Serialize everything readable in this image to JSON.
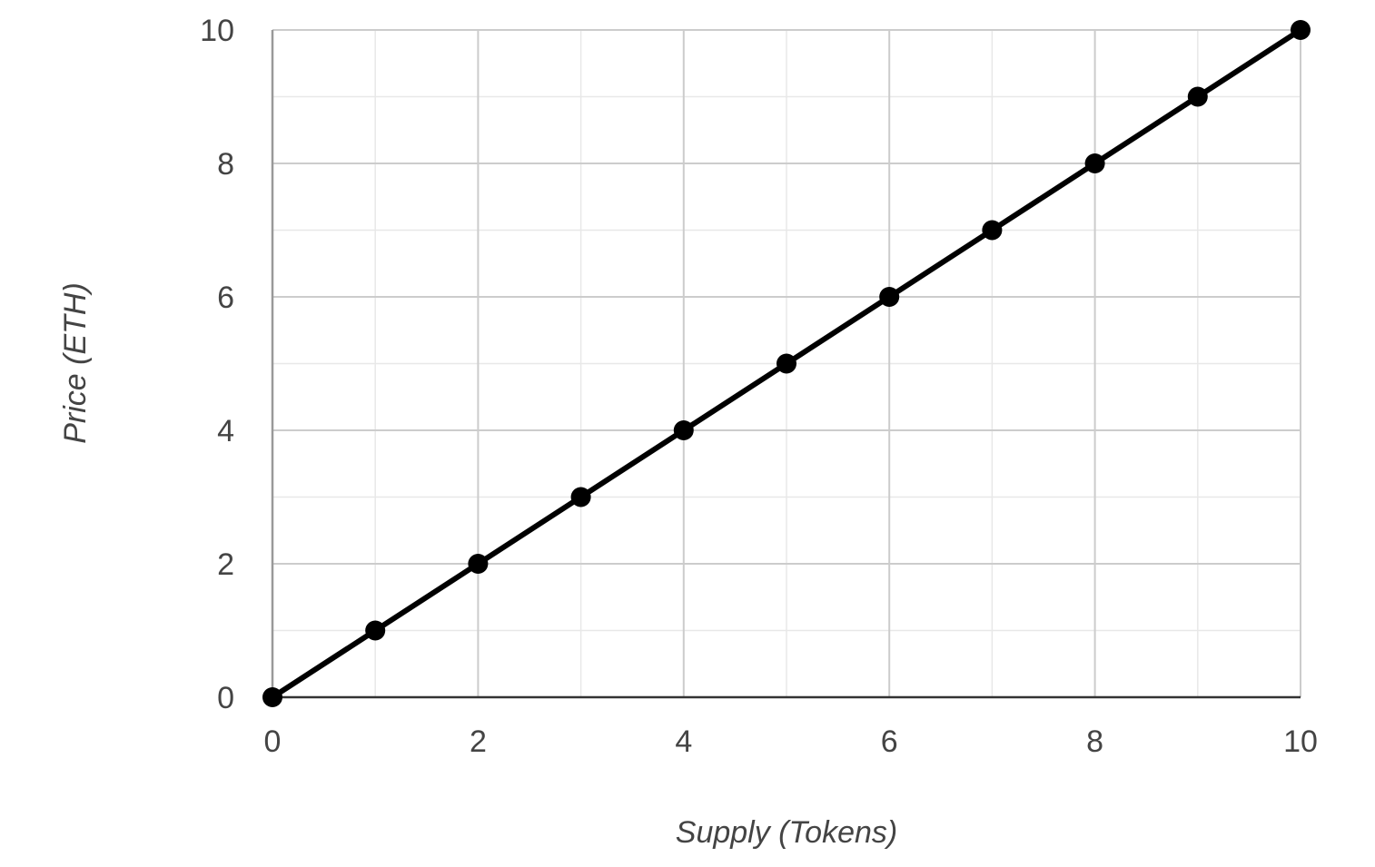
{
  "chart_data": {
    "type": "line",
    "title": "",
    "xlabel": "Supply (Tokens)",
    "ylabel": "Price (ETH)",
    "xlim": [
      0,
      10
    ],
    "ylim": [
      0,
      10
    ],
    "x_ticks": [
      "0",
      "2",
      "4",
      "6",
      "8",
      "10"
    ],
    "y_ticks": [
      "0",
      "2",
      "4",
      "6",
      "8",
      "10"
    ],
    "grid": true,
    "legend": "none",
    "series": [
      {
        "x": [
          0,
          1,
          2,
          3,
          4,
          5,
          6,
          7,
          8,
          9,
          10
        ],
        "values": [
          0,
          1,
          2,
          3,
          4,
          5,
          6,
          7,
          8,
          9,
          10
        ],
        "color": "#000000",
        "markers": true
      }
    ]
  }
}
